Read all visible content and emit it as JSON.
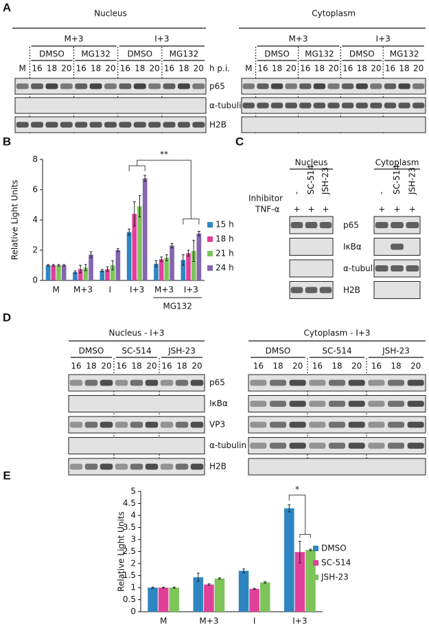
{
  "figure": {
    "A": {
      "label": "A",
      "sections": [
        "Nucleus",
        "Cytoplasm"
      ],
      "infections": [
        "M+3",
        "I+3"
      ],
      "treatments": [
        "DMSO",
        "MG132"
      ],
      "mock": "M",
      "times": [
        "16",
        "18",
        "20"
      ],
      "time_unit": "h p.i.",
      "rows": [
        "p65",
        "α-tubulin",
        "H2B"
      ]
    },
    "B": {
      "label": "B"
    },
    "C": {
      "label": "C",
      "sections": [
        "Nucleus",
        "Cytoplasm"
      ],
      "row_headers": [
        "Inhibitor",
        "TNF-α"
      ],
      "inhibitors": [
        "-",
        "SC-514",
        "JSH-23"
      ],
      "tnf": "+",
      "rows": [
        "p65",
        "IκBα",
        "α-tubulin",
        "H2B"
      ]
    },
    "D": {
      "label": "D",
      "sections": [
        "Nucleus - I+3",
        "Cytoplasm - I+3"
      ],
      "treatments": [
        "DMSO",
        "SC-514",
        "JSH-23"
      ],
      "times": [
        "16",
        "18",
        "20"
      ],
      "rows": [
        "p65",
        "IκBα",
        "VP3",
        "α-tubulin",
        "H2B"
      ]
    },
    "E": {
      "label": "E"
    }
  },
  "chart_data": [
    {
      "type": "bar",
      "ylabel": "Relative Light Units",
      "categories": [
        "M",
        "M+3",
        "I",
        "I+3",
        "M+3",
        "I+3"
      ],
      "group_label": "MG132",
      "annotation": "**",
      "ylim": [
        0,
        8
      ],
      "yticks": [
        0,
        2,
        4,
        6,
        8
      ],
      "series": [
        {
          "name": "15 h",
          "color": "#2e86c1",
          "values": [
            1,
            0.55,
            0.65,
            3.2,
            1.1,
            1.35
          ],
          "errors": [
            0.05,
            0.08,
            0.08,
            0.2,
            0.2,
            0.35
          ]
        },
        {
          "name": "18 h",
          "color": "#e0409a",
          "values": [
            1,
            0.75,
            0.75,
            4.4,
            1.4,
            1.8
          ],
          "errors": [
            0.05,
            0.25,
            0.15,
            0.8,
            0.15,
            0.2
          ]
        },
        {
          "name": "21 h",
          "color": "#7dc45a",
          "values": [
            1,
            0.85,
            1.0,
            4.9,
            1.5,
            1.95
          ],
          "errors": [
            0.05,
            0.2,
            0.3,
            0.7,
            0.2,
            0.7
          ]
        },
        {
          "name": "24 h",
          "color": "#8466b0",
          "values": [
            1,
            1.7,
            2.0,
            6.75,
            2.3,
            3.1
          ],
          "errors": [
            0.05,
            0.2,
            0.1,
            0.2,
            0.15,
            0.15
          ]
        }
      ]
    },
    {
      "type": "bar",
      "ylabel": "Relative Light Units",
      "categories": [
        "M",
        "M+3",
        "I",
        "I+3"
      ],
      "annotation": "*",
      "ylim": [
        0,
        5
      ],
      "yticks": [
        0,
        0.5,
        1,
        1.5,
        2,
        2.5,
        3,
        3.5,
        4,
        4.5,
        5
      ],
      "series": [
        {
          "name": "DMSO",
          "color": "#2e86c1",
          "values": [
            1,
            1.43,
            1.7,
            4.3
          ],
          "errors": [
            0.02,
            0.17,
            0.08,
            0.15
          ]
        },
        {
          "name": "SC-514",
          "color": "#e0409a",
          "values": [
            1,
            1.13,
            0.95,
            2.48
          ],
          "errors": [
            0.02,
            0.03,
            0.02,
            0.45
          ]
        },
        {
          "name": "JSH-23",
          "color": "#7dc45a",
          "values": [
            1,
            1.38,
            1.22,
            2.57
          ],
          "errors": [
            0.02,
            0.03,
            0.03,
            0.03
          ]
        }
      ]
    }
  ]
}
